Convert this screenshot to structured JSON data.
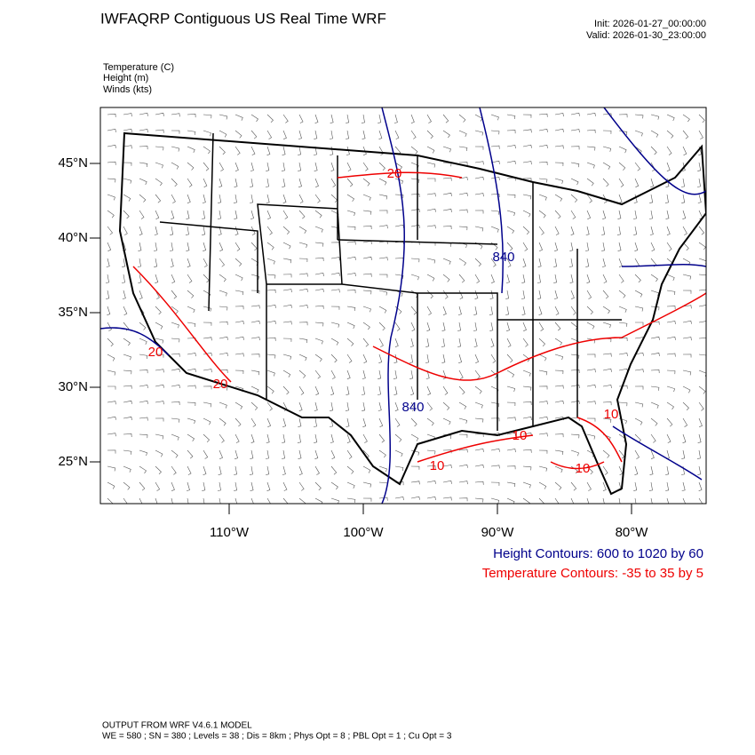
{
  "header": {
    "title": "IWFAQRP Contiguous US Real Time WRF",
    "init": "Init: 2026-01-27_00:00:00",
    "valid": "Valid: 2026-01-30_23:00:00"
  },
  "fields": [
    "Temperature   (C)",
    "Height   (m)",
    "Winds   (kts)"
  ],
  "map": {
    "lat_ticks": [
      {
        "value": 25,
        "label": "25°N"
      },
      {
        "value": 30,
        "label": "30°N"
      },
      {
        "value": 35,
        "label": "35°N"
      },
      {
        "value": 40,
        "label": "40°N"
      },
      {
        "value": 45,
        "label": "45°N"
      }
    ],
    "lon_ticks": [
      {
        "value": -110,
        "label": "110°W"
      },
      {
        "value": -100,
        "label": "100°W"
      },
      {
        "value": -90,
        "label": "90°W"
      },
      {
        "value": -80,
        "label": "80°W"
      }
    ],
    "contour_labels": [
      "20",
      "840",
      "20",
      "20",
      "840",
      "10",
      "10",
      "10",
      "10"
    ]
  },
  "legend": {
    "height": "Height Contours: 600 to 1020 by 60",
    "temperature": "Temperature Contours: -35 to 35 by 5"
  },
  "footer": {
    "line1": "OUTPUT FROM WRF V4.6.1 MODEL",
    "line2": "WE = 580 ; SN = 380 ; Levels = 38 ; Dis = 8km ; Phys Opt = 8 ; PBL Opt = 1 ; Cu Opt = 3"
  }
}
